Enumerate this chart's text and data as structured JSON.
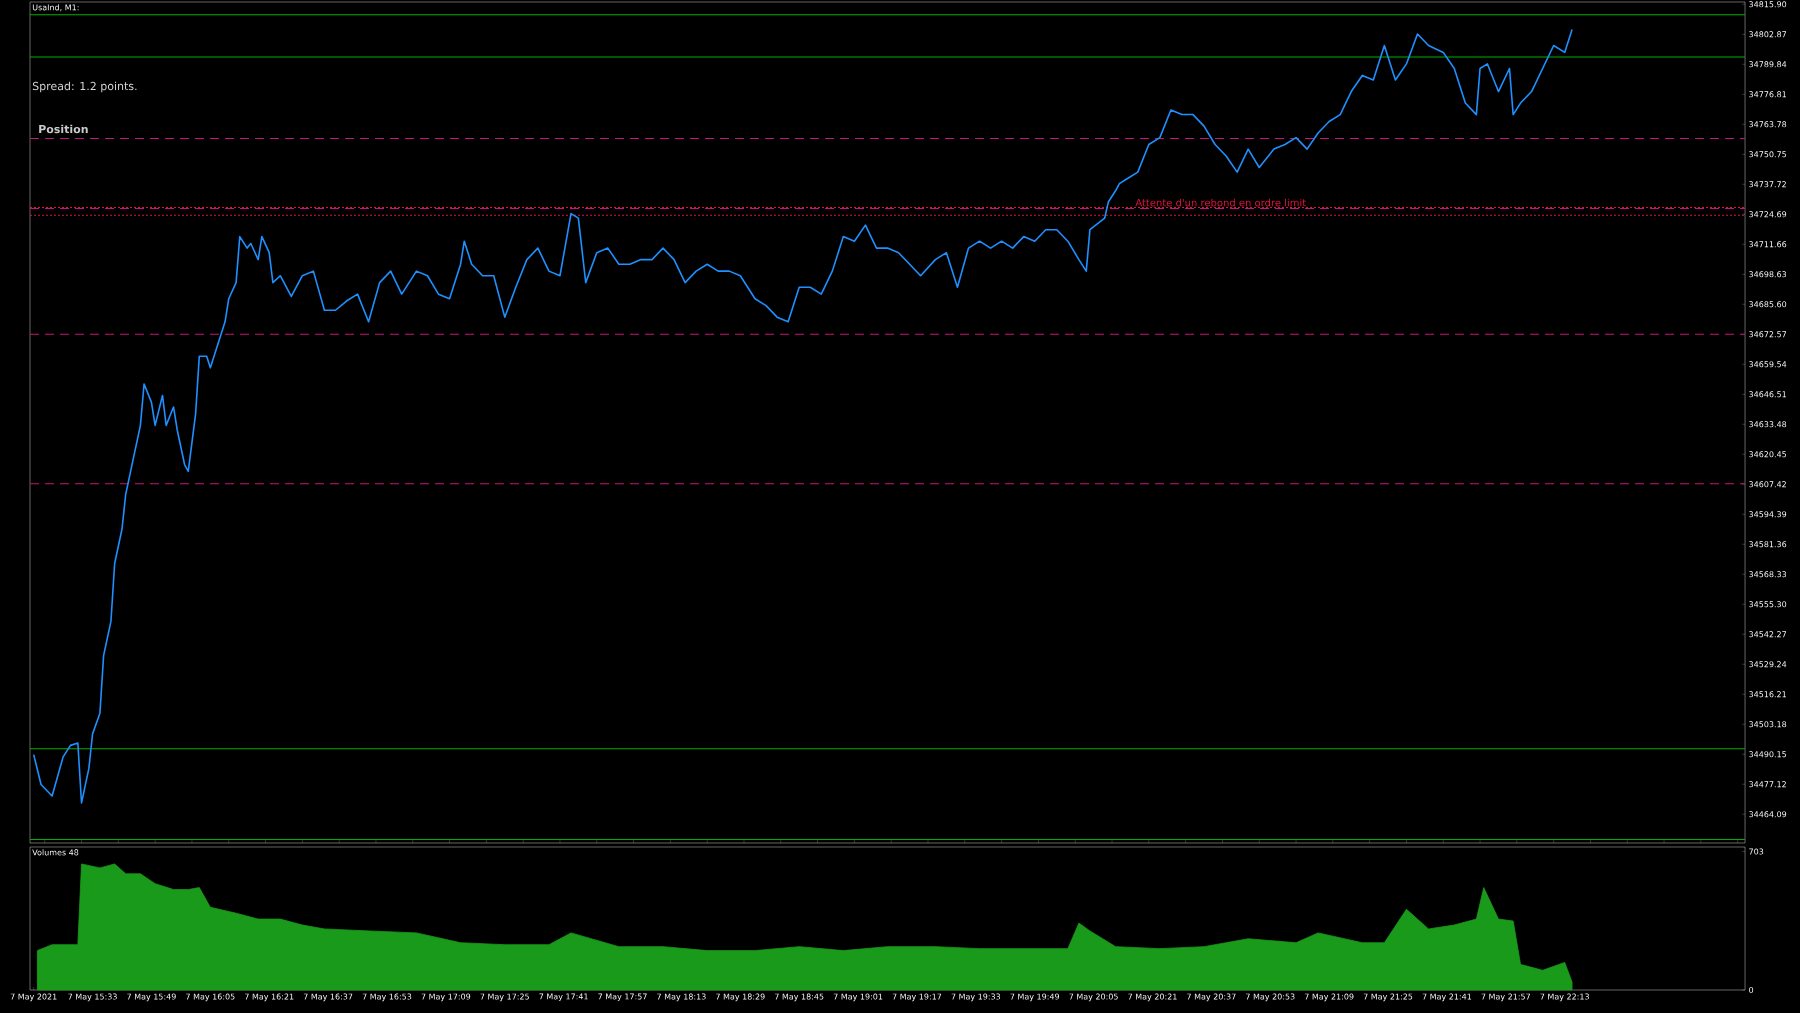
{
  "chart_data": [
    {
      "type": "line",
      "title": "UsaInd, M1:",
      "annotations": [
        "Spread: 1.2 points.",
        "Position",
        {
          "text": "Attente d'un rebond en ordre limit",
          "x": "2021-05-07T20:16",
          "y": 34727.6
        }
      ],
      "xlim": [
        "2021-05-07T15:16",
        "2021-05-07T23:02"
      ],
      "ylim": [
        34451.6,
        34816.9
      ],
      "tick_labels": "y",
      "yticks": [
        {
          "value": 34815.9,
          "label": "34815.90"
        },
        34802.87,
        34789.84,
        34776.81,
        34763.78,
        34750.75,
        34737.72,
        34724.69,
        34711.66,
        34698.63,
        {
          "value": 34685.6,
          "label": "34685.60"
        },
        34672.57,
        34659.54,
        34646.51,
        34633.48,
        34620.45,
        34607.42,
        34594.39,
        34581.36,
        34568.33,
        {
          "value": 34555.3,
          "label": "34555.30"
        },
        34542.27,
        34529.24,
        34516.21,
        34503.18,
        34490.15,
        34477.12,
        34464.09
      ],
      "ref_lines": [
        {
          "axis": "y",
          "value": 34757.6,
          "color": "#c8147a",
          "line_style": "dashed"
        },
        {
          "axis": "y",
          "value": 34727.2,
          "color": "#c8147a",
          "line_style": "dashed"
        },
        {
          "axis": "y",
          "value": 34672.6,
          "color": "#c8147a",
          "line_style": "dashed"
        },
        {
          "axis": "y",
          "value": 34607.6,
          "color": "#c8147a",
          "line_style": "dashed"
        },
        {
          "axis": "y",
          "value": 34727.6,
          "color": "#dc143c",
          "line_style": "dotted"
        },
        {
          "axis": "y",
          "value": 34724.3,
          "color": "#dc143c",
          "line_style": "dotted"
        },
        {
          "axis": "y",
          "value": 34811.4,
          "color": "#00b000",
          "line_style": "solid"
        },
        {
          "axis": "y",
          "value": 34793.0,
          "color": "#00b000",
          "line_style": "solid"
        },
        {
          "axis": "y",
          "value": 34492.5,
          "color": "#00b000",
          "line_style": "solid"
        },
        {
          "axis": "y",
          "value": 34453.1,
          "color": "#00b000",
          "line_style": "solid"
        }
      ],
      "series": [
        {
          "color": "#1e90ff",
          "x": [
            "2021-05-07T15:17",
            "2021-05-07T15:19",
            "2021-05-07T15:22",
            "2021-05-07T15:25",
            "2021-05-07T15:27",
            "2021-05-07T15:29",
            "2021-05-07T15:30",
            "2021-05-07T15:32",
            "2021-05-07T15:33",
            "2021-05-07T15:35",
            "2021-05-07T15:36",
            "2021-05-07T15:38",
            "2021-05-07T15:39",
            "2021-05-07T15:41",
            "2021-05-07T15:42",
            "2021-05-07T15:44",
            "2021-05-07T15:46",
            "2021-05-07T15:47",
            "2021-05-07T15:49",
            "2021-05-07T15:50",
            "2021-05-07T15:52",
            "2021-05-07T15:53",
            "2021-05-07T15:55",
            "2021-05-07T15:56",
            "2021-05-07T15:58",
            "2021-05-07T15:59",
            "2021-05-07T16:01",
            "2021-05-07T16:02",
            "2021-05-07T16:04",
            "2021-05-07T16:05",
            "2021-05-07T16:07",
            "2021-05-07T16:09",
            "2021-05-07T16:10",
            "2021-05-07T16:12",
            "2021-05-07T16:13",
            "2021-05-07T16:15",
            "2021-05-07T16:16",
            "2021-05-07T16:18",
            "2021-05-07T16:19",
            "2021-05-07T16:21",
            "2021-05-07T16:22",
            "2021-05-07T16:24",
            "2021-05-07T16:27",
            "2021-05-07T16:30",
            "2021-05-07T16:33",
            "2021-05-07T16:36",
            "2021-05-07T16:39",
            "2021-05-07T16:42",
            "2021-05-07T16:45",
            "2021-05-07T16:48",
            "2021-05-07T16:51",
            "2021-05-07T16:54",
            "2021-05-07T16:57",
            "2021-05-07T17:01",
            "2021-05-07T17:04",
            "2021-05-07T17:07",
            "2021-05-07T17:10",
            "2021-05-07T17:13",
            "2021-05-07T17:14",
            "2021-05-07T17:16",
            "2021-05-07T17:19",
            "2021-05-07T17:22",
            "2021-05-07T17:25",
            "2021-05-07T17:28",
            "2021-05-07T17:31",
            "2021-05-07T17:34",
            "2021-05-07T17:37",
            "2021-05-07T17:40",
            "2021-05-07T17:43",
            "2021-05-07T17:45",
            "2021-05-07T17:47",
            "2021-05-07T17:50",
            "2021-05-07T17:53",
            "2021-05-07T17:56",
            "2021-05-07T17:59",
            "2021-05-07T18:02",
            "2021-05-07T18:05",
            "2021-05-07T18:08",
            "2021-05-07T18:11",
            "2021-05-07T18:14",
            "2021-05-07T18:17",
            "2021-05-07T18:20",
            "2021-05-07T18:23",
            "2021-05-07T18:26",
            "2021-05-07T18:29",
            "2021-05-07T18:33",
            "2021-05-07T18:36",
            "2021-05-07T18:39",
            "2021-05-07T18:42",
            "2021-05-07T18:45",
            "2021-05-07T18:48",
            "2021-05-07T18:51",
            "2021-05-07T18:54",
            "2021-05-07T18:57",
            "2021-05-07T19:00",
            "2021-05-07T19:03",
            "2021-05-07T19:06",
            "2021-05-07T19:09",
            "2021-05-07T19:12",
            "2021-05-07T19:15",
            "2021-05-07T19:18",
            "2021-05-07T19:22",
            "2021-05-07T19:25",
            "2021-05-07T19:28",
            "2021-05-07T19:31",
            "2021-05-07T19:34",
            "2021-05-07T19:37",
            "2021-05-07T19:40",
            "2021-05-07T19:43",
            "2021-05-07T19:46",
            "2021-05-07T19:49",
            "2021-05-07T19:52",
            "2021-05-07T19:55",
            "2021-05-07T19:58",
            "2021-05-07T20:01",
            "2021-05-07T20:03",
            "2021-05-07T20:04",
            "2021-05-07T20:08",
            "2021-05-07T20:09",
            "2021-05-07T20:11",
            "2021-05-07T20:12",
            "2021-05-07T20:14",
            "2021-05-07T20:17",
            "2021-05-07T20:20",
            "2021-05-07T20:23",
            "2021-05-07T20:26",
            "2021-05-07T20:29",
            "2021-05-07T20:32",
            "2021-05-07T20:35",
            "2021-05-07T20:38",
            "2021-05-07T20:41",
            "2021-05-07T20:44",
            "2021-05-07T20:47",
            "2021-05-07T20:50",
            "2021-05-07T20:54",
            "2021-05-07T20:57",
            "2021-05-07T21:00",
            "2021-05-07T21:03",
            "2021-05-07T21:06",
            "2021-05-07T21:09",
            "2021-05-07T21:12",
            "2021-05-07T21:15",
            "2021-05-07T21:18",
            "2021-05-07T21:21",
            "2021-05-07T21:24",
            "2021-05-07T21:27",
            "2021-05-07T21:30",
            "2021-05-07T21:33",
            "2021-05-07T21:36",
            "2021-05-07T21:40",
            "2021-05-07T21:43",
            "2021-05-07T21:46",
            "2021-05-07T21:49",
            "2021-05-07T21:50",
            "2021-05-07T21:52",
            "2021-05-07T21:55",
            "2021-05-07T21:58",
            "2021-05-07T21:59",
            "2021-05-07T22:01",
            "2021-05-07T22:04",
            "2021-05-07T22:07",
            "2021-05-07T22:10",
            "2021-05-07T22:13",
            "2021-05-07T22:15"
          ],
          "values": [
            34490,
            34477,
            34472,
            34489,
            34494,
            34495,
            34469,
            34484,
            34499,
            34508,
            34533,
            34548,
            34573,
            34588,
            34603,
            34618,
            34633,
            34651,
            34643,
            34633,
            34646,
            34633,
            34641,
            34631,
            34616,
            34613,
            34638,
            34663,
            34663,
            34658,
            34668,
            34678,
            34688,
            34695,
            34715,
            34710,
            34712,
            34705,
            34715,
            34708,
            34695,
            34698,
            34689,
            34698,
            34700,
            34683,
            34683,
            34687,
            34690,
            34678,
            34695,
            34700,
            34690,
            34700,
            34698,
            34690,
            34688,
            34703,
            34713,
            34703,
            34698,
            34698,
            34680,
            34693,
            34705,
            34710,
            34700,
            34698,
            34725,
            34723,
            34695,
            34708,
            34710,
            34703,
            34703,
            34705,
            34705,
            34710,
            34705,
            34695,
            34700,
            34703,
            34700,
            34700,
            34698,
            34688,
            34685,
            34680,
            34678,
            34693,
            34693,
            34690,
            34700,
            34715,
            34713,
            34720,
            34710,
            34710,
            34708,
            34703,
            34698,
            34705,
            34708,
            34693,
            34710,
            34713,
            34710,
            34713,
            34710,
            34715,
            34713,
            34718,
            34718,
            34713,
            34705,
            34700,
            34718,
            34723,
            34730,
            34735,
            34738,
            34740,
            34743,
            34755,
            34758,
            34770,
            34768,
            34768,
            34763,
            34755,
            34750,
            34743,
            34753,
            34745,
            34753,
            34755,
            34758,
            34753,
            34760,
            34765,
            34768,
            34778,
            34785,
            34783,
            34798,
            34783,
            34790,
            34803,
            34798,
            34795,
            34788,
            34773,
            34768,
            34788,
            34790,
            34778,
            34788,
            34768,
            34773,
            34778,
            34788,
            34798,
            34795,
            34805
          ]
        }
      ]
    },
    {
      "type": "area",
      "title": "Volumes 48",
      "xlim": [
        "2021-05-07T15:16",
        "2021-05-07T23:02"
      ],
      "ylim": [
        0,
        726
      ],
      "yticks": [
        0,
        703
      ],
      "xticks": [
        {
          "value": "2021-05-07T15:17",
          "label": "7 May 2021"
        },
        {
          "value": "2021-05-07T15:33",
          "label": "7 May 15:33"
        },
        {
          "value": "2021-05-07T15:49",
          "label": "7 May 15:49"
        },
        {
          "value": "2021-05-07T16:05",
          "label": "7 May 16:05"
        },
        {
          "value": "2021-05-07T16:21",
          "label": "7 May 16:21"
        },
        {
          "value": "2021-05-07T16:37",
          "label": "7 May 16:37"
        },
        {
          "value": "2021-05-07T16:53",
          "label": "7 May 16:53"
        },
        {
          "value": "2021-05-07T17:09",
          "label": "7 May 17:09"
        },
        {
          "value": "2021-05-07T17:25",
          "label": "7 May 17:25"
        },
        {
          "value": "2021-05-07T17:41",
          "label": "7 May 17:41"
        },
        {
          "value": "2021-05-07T17:57",
          "label": "7 May 17:57"
        },
        {
          "value": "2021-05-07T18:13",
          "label": "7 May 18:13"
        },
        {
          "value": "2021-05-07T18:29",
          "label": "7 May 18:29"
        },
        {
          "value": "2021-05-07T18:45",
          "label": "7 May 18:45"
        },
        {
          "value": "2021-05-07T19:01",
          "label": "7 May 19:01"
        },
        {
          "value": "2021-05-07T19:17",
          "label": "7 May 19:17"
        },
        {
          "value": "2021-05-07T19:33",
          "label": "7 May 19:33"
        },
        {
          "value": "2021-05-07T19:49",
          "label": "7 May 19:49"
        },
        {
          "value": "2021-05-07T20:05",
          "label": "7 May 20:05"
        },
        {
          "value": "2021-05-07T20:21",
          "label": "7 May 20:21"
        },
        {
          "value": "2021-05-07T20:37",
          "label": "7 May 20:37"
        },
        {
          "value": "2021-05-07T20:53",
          "label": "7 May 20:53"
        },
        {
          "value": "2021-05-07T21:09",
          "label": "7 May 21:09"
        },
        {
          "value": "2021-05-07T21:25",
          "label": "7 May 21:25"
        },
        {
          "value": "2021-05-07T21:41",
          "label": "7 May 21:41"
        },
        {
          "value": "2021-05-07T21:57",
          "label": "7 May 21:57"
        },
        {
          "value": "2021-05-07T22:13",
          "label": "7 May 22:13"
        }
      ],
      "series": [
        {
          "color": "#1a9a1a",
          "x": [
            "2021-05-07T15:18",
            "2021-05-07T15:22",
            "2021-05-07T15:29",
            "2021-05-07T15:30",
            "2021-05-07T15:35",
            "2021-05-07T15:39",
            "2021-05-07T15:42",
            "2021-05-07T15:46",
            "2021-05-07T15:50",
            "2021-05-07T15:55",
            "2021-05-07T15:59",
            "2021-05-07T16:02",
            "2021-05-07T16:05",
            "2021-05-07T16:12",
            "2021-05-07T16:18",
            "2021-05-07T16:24",
            "2021-05-07T16:30",
            "2021-05-07T16:36",
            "2021-05-07T16:48",
            "2021-05-07T17:01",
            "2021-05-07T17:13",
            "2021-05-07T17:25",
            "2021-05-07T17:37",
            "2021-05-07T17:43",
            "2021-05-07T17:56",
            "2021-05-07T18:08",
            "2021-05-07T18:20",
            "2021-05-07T18:33",
            "2021-05-07T18:45",
            "2021-05-07T18:57",
            "2021-05-07T19:09",
            "2021-05-07T19:22",
            "2021-05-07T19:34",
            "2021-05-07T19:46",
            "2021-05-07T19:58",
            "2021-05-07T20:01",
            "2021-05-07T20:04",
            "2021-05-07T20:11",
            "2021-05-07T20:23",
            "2021-05-07T20:35",
            "2021-05-07T20:47",
            "2021-05-07T21:00",
            "2021-05-07T21:06",
            "2021-05-07T21:18",
            "2021-05-07T21:24",
            "2021-05-07T21:30",
            "2021-05-07T21:36",
            "2021-05-07T21:43",
            "2021-05-07T21:49",
            "2021-05-07T21:51",
            "2021-05-07T21:55",
            "2021-05-07T21:59",
            "2021-05-07T22:01",
            "2021-05-07T22:07",
            "2021-05-07T22:13",
            "2021-05-07T22:15"
          ],
          "values": [
            200,
            230,
            230,
            640,
            620,
            640,
            590,
            590,
            540,
            510,
            510,
            520,
            420,
            390,
            360,
            360,
            330,
            310,
            300,
            290,
            240,
            230,
            230,
            290,
            220,
            220,
            200,
            200,
            220,
            200,
            220,
            220,
            210,
            210,
            210,
            340,
            300,
            220,
            210,
            220,
            260,
            240,
            290,
            240,
            240,
            410,
            310,
            330,
            360,
            520,
            360,
            350,
            130,
            100,
            140,
            40
          ]
        }
      ]
    }
  ]
}
